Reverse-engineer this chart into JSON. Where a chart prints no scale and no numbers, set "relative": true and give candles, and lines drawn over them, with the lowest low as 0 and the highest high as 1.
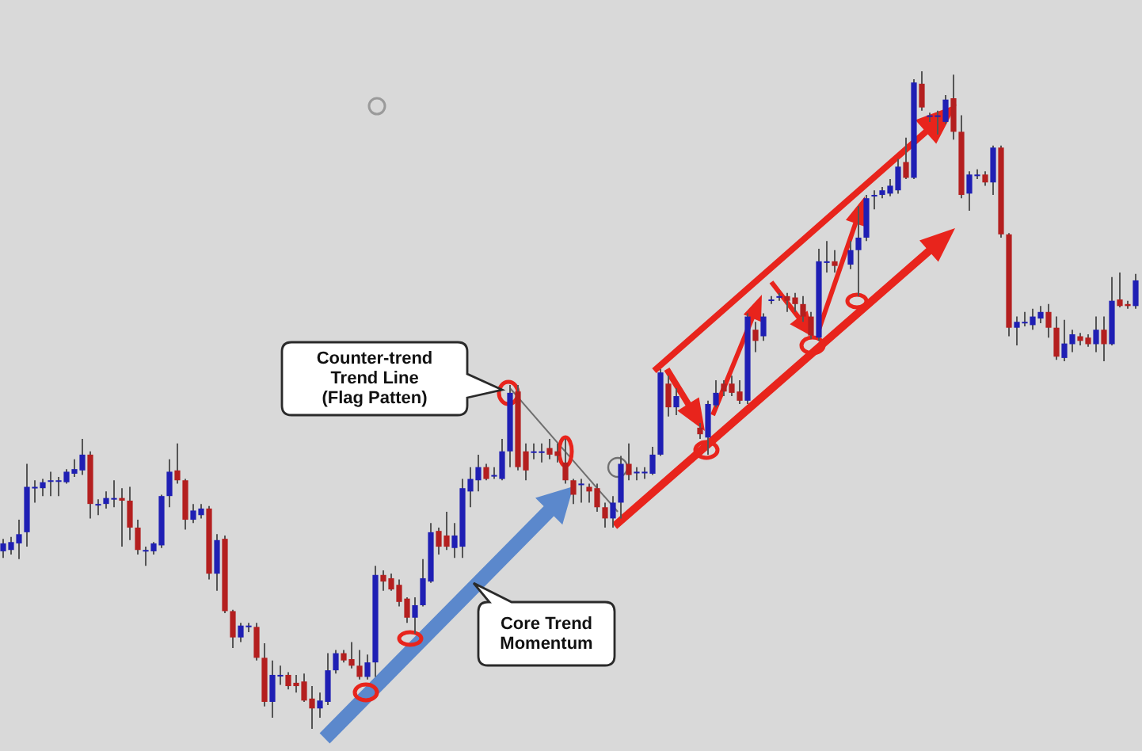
{
  "chart_data": {
    "type": "candlestick",
    "relative": true,
    "categories": [
      null,
      null,
      null,
      null,
      null,
      null,
      null,
      null,
      null,
      null,
      null,
      null,
      null,
      null,
      null,
      null,
      null,
      null,
      null,
      null,
      null,
      null,
      null,
      null,
      null,
      null,
      null,
      null,
      null,
      null,
      null,
      null,
      null,
      null,
      null,
      null,
      null,
      null,
      null,
      null,
      null,
      null,
      null,
      null,
      null,
      null,
      null,
      null,
      null,
      null,
      null,
      null,
      null,
      null,
      null,
      null,
      null,
      null,
      null,
      null,
      null,
      null,
      null,
      null,
      null,
      null,
      null,
      null,
      null,
      null,
      null,
      null,
      null,
      null,
      null,
      null,
      null,
      null,
      null,
      null,
      null,
      null,
      null,
      null,
      null,
      null,
      null,
      null,
      null,
      null,
      null,
      null,
      null,
      null,
      null,
      null,
      null,
      null,
      null,
      null,
      null,
      null,
      null,
      null,
      null,
      null,
      null,
      null,
      null,
      null,
      null,
      null,
      null,
      null,
      null,
      null,
      null,
      null,
      null,
      null,
      null,
      null,
      null,
      null,
      null,
      null,
      null,
      null,
      null,
      null,
      null,
      null,
      null,
      null,
      null,
      null,
      null,
      null,
      null,
      null,
      null,
      null,
      null,
      null
    ],
    "ohlc": [
      [
        0.27,
        0.289,
        0.26,
        0.282
      ],
      [
        0.272,
        0.292,
        0.265,
        0.284
      ],
      [
        0.282,
        0.318,
        0.258,
        0.296
      ],
      [
        0.299,
        0.403,
        0.277,
        0.368
      ],
      [
        0.368,
        0.378,
        0.344,
        0.368
      ],
      [
        0.366,
        0.38,
        0.354,
        0.375
      ],
      [
        0.378,
        0.391,
        0.354,
        0.378
      ],
      [
        0.378,
        0.383,
        0.354,
        0.378
      ],
      [
        0.375,
        0.395,
        0.373,
        0.391
      ],
      [
        0.388,
        0.41,
        0.383,
        0.395
      ],
      [
        0.393,
        0.441,
        0.386,
        0.417
      ],
      [
        0.417,
        0.422,
        0.32,
        0.342
      ],
      [
        0.342,
        0.349,
        0.325,
        0.342
      ],
      [
        0.342,
        0.361,
        0.335,
        0.351
      ],
      [
        0.351,
        0.378,
        0.337,
        0.351
      ],
      [
        0.351,
        0.366,
        0.277,
        0.347
      ],
      [
        0.347,
        0.368,
        0.287,
        0.306
      ],
      [
        0.306,
        0.318,
        0.265,
        0.272
      ],
      [
        0.272,
        0.277,
        0.248,
        0.272
      ],
      [
        0.27,
        0.284,
        0.265,
        0.282
      ],
      [
        0.279,
        0.356,
        0.275,
        0.354
      ],
      [
        0.354,
        0.41,
        0.337,
        0.391
      ],
      [
        0.393,
        0.434,
        0.373,
        0.378
      ],
      [
        0.378,
        0.38,
        0.303,
        0.318
      ],
      [
        0.318,
        0.342,
        0.313,
        0.332
      ],
      [
        0.325,
        0.342,
        0.32,
        0.335
      ],
      [
        0.335,
        0.339,
        0.227,
        0.236
      ],
      [
        0.236,
        0.296,
        0.21,
        0.287
      ],
      [
        0.289,
        0.294,
        0.176,
        0.179
      ],
      [
        0.179,
        0.181,
        0.123,
        0.139
      ],
      [
        0.139,
        0.161,
        0.132,
        0.157
      ],
      [
        0.157,
        0.161,
        0.147,
        0.157
      ],
      [
        0.155,
        0.161,
        0.104,
        0.108
      ],
      [
        0.108,
        0.13,
        0.034,
        0.041
      ],
      [
        0.041,
        0.104,
        0.017,
        0.082
      ],
      [
        0.082,
        0.096,
        0.067,
        0.082
      ],
      [
        0.082,
        0.086,
        0.06,
        0.065
      ],
      [
        0.07,
        0.082,
        0.055,
        0.065
      ],
      [
        0.072,
        0.084,
        0.041,
        0.043
      ],
      [
        0.046,
        0.065,
        0,
        0.031
      ],
      [
        0.031,
        0.055,
        0.017,
        0.043
      ],
      [
        0.041,
        0.115,
        0.036,
        0.089
      ],
      [
        0.089,
        0.12,
        0.084,
        0.115
      ],
      [
        0.115,
        0.12,
        0.101,
        0.104
      ],
      [
        0.106,
        0.132,
        0.092,
        0.096
      ],
      [
        0.096,
        0.12,
        0.075,
        0.079
      ],
      [
        0.079,
        0.113,
        0.075,
        0.101
      ],
      [
        0.101,
        0.248,
        0.079,
        0.234
      ],
      [
        0.234,
        0.241,
        0.21,
        0.224
      ],
      [
        0.229,
        0.236,
        0.21,
        0.212
      ],
      [
        0.219,
        0.227,
        0.186,
        0.193
      ],
      [
        0.198,
        0.2,
        0.161,
        0.169
      ],
      [
        0.169,
        0.2,
        0.145,
        0.188
      ],
      [
        0.188,
        0.258,
        0.186,
        0.229
      ],
      [
        0.224,
        0.313,
        0.222,
        0.299
      ],
      [
        0.301,
        0.306,
        0.265,
        0.277
      ],
      [
        0.294,
        0.33,
        0.272,
        0.277
      ],
      [
        0.275,
        0.313,
        0.26,
        0.294
      ],
      [
        0.277,
        0.38,
        0.26,
        0.366
      ],
      [
        0.361,
        0.398,
        0.337,
        0.38
      ],
      [
        0.378,
        0.417,
        0.361,
        0.398
      ],
      [
        0.398,
        0.403,
        0.378,
        0.38
      ],
      [
        0.386,
        0.398,
        0.38,
        0.386
      ],
      [
        0.38,
        0.441,
        0.378,
        0.422
      ],
      [
        0.422,
        0.523,
        0.398,
        0.511
      ],
      [
        0.513,
        0.523,
        0.393,
        0.398
      ],
      [
        0.422,
        0.434,
        0.378,
        0.393
      ],
      [
        0.422,
        0.434,
        0.41,
        0.422
      ],
      [
        0.422,
        0.434,
        0.405,
        0.422
      ],
      [
        0.427,
        0.441,
        0.41,
        0.417
      ],
      [
        0.422,
        0.434,
        0.405,
        0.415
      ],
      [
        0.405,
        0.441,
        0.373,
        0.378
      ],
      [
        0.378,
        0.38,
        0.342,
        0.356
      ],
      [
        0.373,
        0.38,
        0.344,
        0.373
      ],
      [
        0.368,
        0.373,
        0.344,
        0.361
      ],
      [
        0.366,
        0.373,
        0.33,
        0.337
      ],
      [
        0.337,
        0.344,
        0.306,
        0.32
      ],
      [
        0.32,
        0.354,
        0.306,
        0.344
      ],
      [
        0.344,
        0.415,
        0.32,
        0.403
      ],
      [
        0.403,
        0.434,
        0.378,
        0.386
      ],
      [
        0.391,
        0.398,
        0.378,
        0.391
      ],
      [
        0.391,
        0.398,
        0.38,
        0.391
      ],
      [
        0.388,
        0.429,
        0.386,
        0.417
      ],
      [
        0.417,
        0.547,
        0.415,
        0.542
      ],
      [
        0.525,
        0.537,
        0.475,
        0.489
      ],
      [
        0.489,
        0.518,
        0.477,
        0.506
      ],
      null,
      null,
      [
        0.458,
        0.465,
        0.441,
        0.448
      ],
      [
        0.443,
        0.499,
        0.417,
        0.494
      ],
      [
        0.492,
        0.53,
        0.489,
        0.511
      ],
      [
        0.525,
        0.53,
        0.506,
        0.513
      ],
      [
        0.525,
        0.537,
        0.506,
        0.511
      ],
      [
        0.513,
        0.53,
        0.494,
        0.499
      ],
      [
        0.499,
        0.632,
        0.494,
        0.627
      ],
      [
        0.607,
        0.619,
        0.573,
        0.59
      ],
      [
        0.597,
        0.632,
        0.59,
        0.627
      ],
      [
        0.653,
        0.658,
        0.646,
        0.653
      ],
      [
        0.658,
        0.663,
        0.651,
        0.658
      ],
      [
        0.658,
        0.663,
        0.634,
        0.651
      ],
      [
        0.656,
        0.663,
        0.634,
        0.646
      ],
      [
        0.646,
        0.658,
        0.619,
        0.627
      ],
      [
        0.627,
        0.634,
        0.593,
        0.598
      ],
      [
        0.595,
        0.73,
        0.59,
        0.711
      ],
      [
        0.711,
        0.742,
        0.694,
        0.711
      ],
      [
        0.711,
        0.728,
        0.694,
        0.704
      ],
      null,
      [
        0.706,
        0.742,
        0.699,
        0.728
      ],
      [
        0.728,
        0.795,
        0.658,
        0.747
      ],
      [
        0.747,
        0.812,
        0.742,
        0.807
      ],
      [
        0.812,
        0.819,
        0.79,
        0.812
      ],
      [
        0.812,
        0.824,
        0.807,
        0.819
      ],
      [
        0.814,
        0.836,
        0.81,
        0.826
      ],
      [
        0.819,
        0.867,
        0.814,
        0.855
      ],
      [
        0.862,
        0.899,
        0.836,
        0.838
      ],
      [
        0.838,
        0.988,
        0.836,
        0.983
      ],
      [
        0.981,
        1,
        0.94,
        0.945
      ],
      [
        0.933,
        0.937,
        0.923,
        0.933
      ],
      [
        0.933,
        0.94,
        0.904,
        0.933
      ],
      [
        0.923,
        0.964,
        0.92,
        0.957
      ],
      [
        0.959,
        0.995,
        0.896,
        0.908
      ],
      [
        0.908,
        0.933,
        0.807,
        0.812
      ],
      [
        0.814,
        0.848,
        0.788,
        0.843
      ],
      [
        0.843,
        0.851,
        0.836,
        0.843
      ],
      [
        0.843,
        0.848,
        0.826,
        0.831
      ],
      [
        0.831,
        0.887,
        0.812,
        0.884
      ],
      [
        0.884,
        0.887,
        0.747,
        0.752
      ],
      [
        0.752,
        0.754,
        0.597,
        0.61
      ],
      [
        0.61,
        0.627,
        0.583,
        0.619
      ],
      [
        0.619,
        0.634,
        0.612,
        0.619
      ],
      [
        0.614,
        0.639,
        0.607,
        0.627
      ],
      [
        0.624,
        0.643,
        0.617,
        0.634
      ],
      [
        0.634,
        0.646,
        0.595,
        0.61
      ],
      [
        0.61,
        0.627,
        0.561,
        0.566
      ],
      [
        0.564,
        0.622,
        0.559,
        0.586
      ],
      [
        0.585,
        0.607,
        0.573,
        0.6
      ],
      [
        0.597,
        0.602,
        0.583,
        0.59
      ],
      [
        0.595,
        0.6,
        0.581,
        0.585
      ],
      [
        0.585,
        0.627,
        0.573,
        0.607
      ],
      [
        0.607,
        0.627,
        0.559,
        0.585
      ],
      [
        0.585,
        0.687,
        0.583,
        0.651
      ],
      [
        0.653,
        0.694,
        0.641,
        0.643
      ],
      [
        0.646,
        0.651,
        0.639,
        0.643
      ],
      [
        0.643,
        0.692,
        0.639,
        0.682
      ]
    ],
    "colors": [
      "#1f1fb4",
      "#1f1fb4",
      "#1f1fb4",
      "#1f1fb4",
      "#1f1fb4",
      "#1f1fb4",
      "#1f1fb4",
      "#1f1fb4",
      "#1f1fb4",
      "#1f1fb4",
      "#1f1fb4",
      "#b41f1f",
      "#1f1fb4",
      "#1f1fb4",
      "#1f1fb4",
      "#b41f1f",
      "#b41f1f",
      "#b41f1f",
      "#1f1fb4",
      "#1f1fb4",
      "#1f1fb4",
      "#1f1fb4",
      "#b41f1f",
      "#b41f1f",
      "#1f1fb4",
      "#1f1fb4",
      "#b41f1f",
      "#1f1fb4",
      "#b41f1f",
      "#b41f1f",
      "#1f1fb4",
      "#1f1fb4",
      "#b41f1f",
      "#b41f1f",
      "#1f1fb4",
      "#1f1fb4",
      "#b41f1f",
      "#b41f1f",
      "#b41f1f",
      "#b41f1f",
      "#1f1fb4",
      "#1f1fb4",
      "#1f1fb4",
      "#b41f1f",
      "#b41f1f",
      "#b41f1f",
      "#1f1fb4",
      "#1f1fb4",
      "#b41f1f",
      "#b41f1f",
      "#b41f1f",
      "#b41f1f",
      "#1f1fb4",
      "#1f1fb4",
      "#1f1fb4",
      "#b41f1f",
      "#b41f1f",
      "#1f1fb4",
      "#1f1fb4",
      "#1f1fb4",
      "#1f1fb4",
      "#b41f1f",
      "#1f1fb4",
      "#1f1fb4",
      "#1f1fb4",
      "#b41f1f",
      "#b41f1f",
      "#1f1fb4",
      "#1f1fb4",
      "#b41f1f",
      "#b41f1f",
      "#b41f1f",
      "#b41f1f",
      "#1f1fb4",
      "#b41f1f",
      "#b41f1f",
      "#b41f1f",
      "#1f1fb4",
      "#1f1fb4",
      "#b41f1f",
      "#1f1fb4",
      "#1f1fb4",
      "#1f1fb4",
      "#1f1fb4",
      "#b41f1f",
      "#1f1fb4",
      null,
      null,
      "#b41f1f",
      "#1f1fb4",
      "#1f1fb4",
      "#b41f1f",
      "#b41f1f",
      "#b41f1f",
      "#1f1fb4",
      "#b41f1f",
      "#1f1fb4",
      "#1f1fb4",
      "#1f1fb4",
      "#b41f1f",
      "#b41f1f",
      "#b41f1f",
      "#b41f1f",
      "#1f1fb4",
      "#1f1fb4",
      "#b41f1f",
      null,
      "#1f1fb4",
      "#1f1fb4",
      "#1f1fb4",
      "#1f1fb4",
      "#1f1fb4",
      "#1f1fb4",
      "#1f1fb4",
      "#b41f1f",
      "#1f1fb4",
      "#b41f1f",
      "#1f1fb4",
      "#1f1fb4",
      "#1f1fb4",
      "#b41f1f",
      "#b41f1f",
      "#1f1fb4",
      "#1f1fb4",
      "#b41f1f",
      "#1f1fb4",
      "#b41f1f",
      "#b41f1f",
      "#1f1fb4",
      "#1f1fb4",
      "#1f1fb4",
      "#1f1fb4",
      "#b41f1f",
      "#b41f1f",
      "#1f1fb4",
      "#1f1fb4",
      "#b41f1f",
      "#b41f1f",
      "#1f1fb4",
      "#b41f1f",
      "#1f1fb4",
      "#b41f1f",
      "#b41f1f",
      "#1f1fb4"
    ],
    "annotations": [
      "Counter-trend\nTrend Line\n(Flag Patten)",
      "Core Trend\nMomentum"
    ]
  }
}
